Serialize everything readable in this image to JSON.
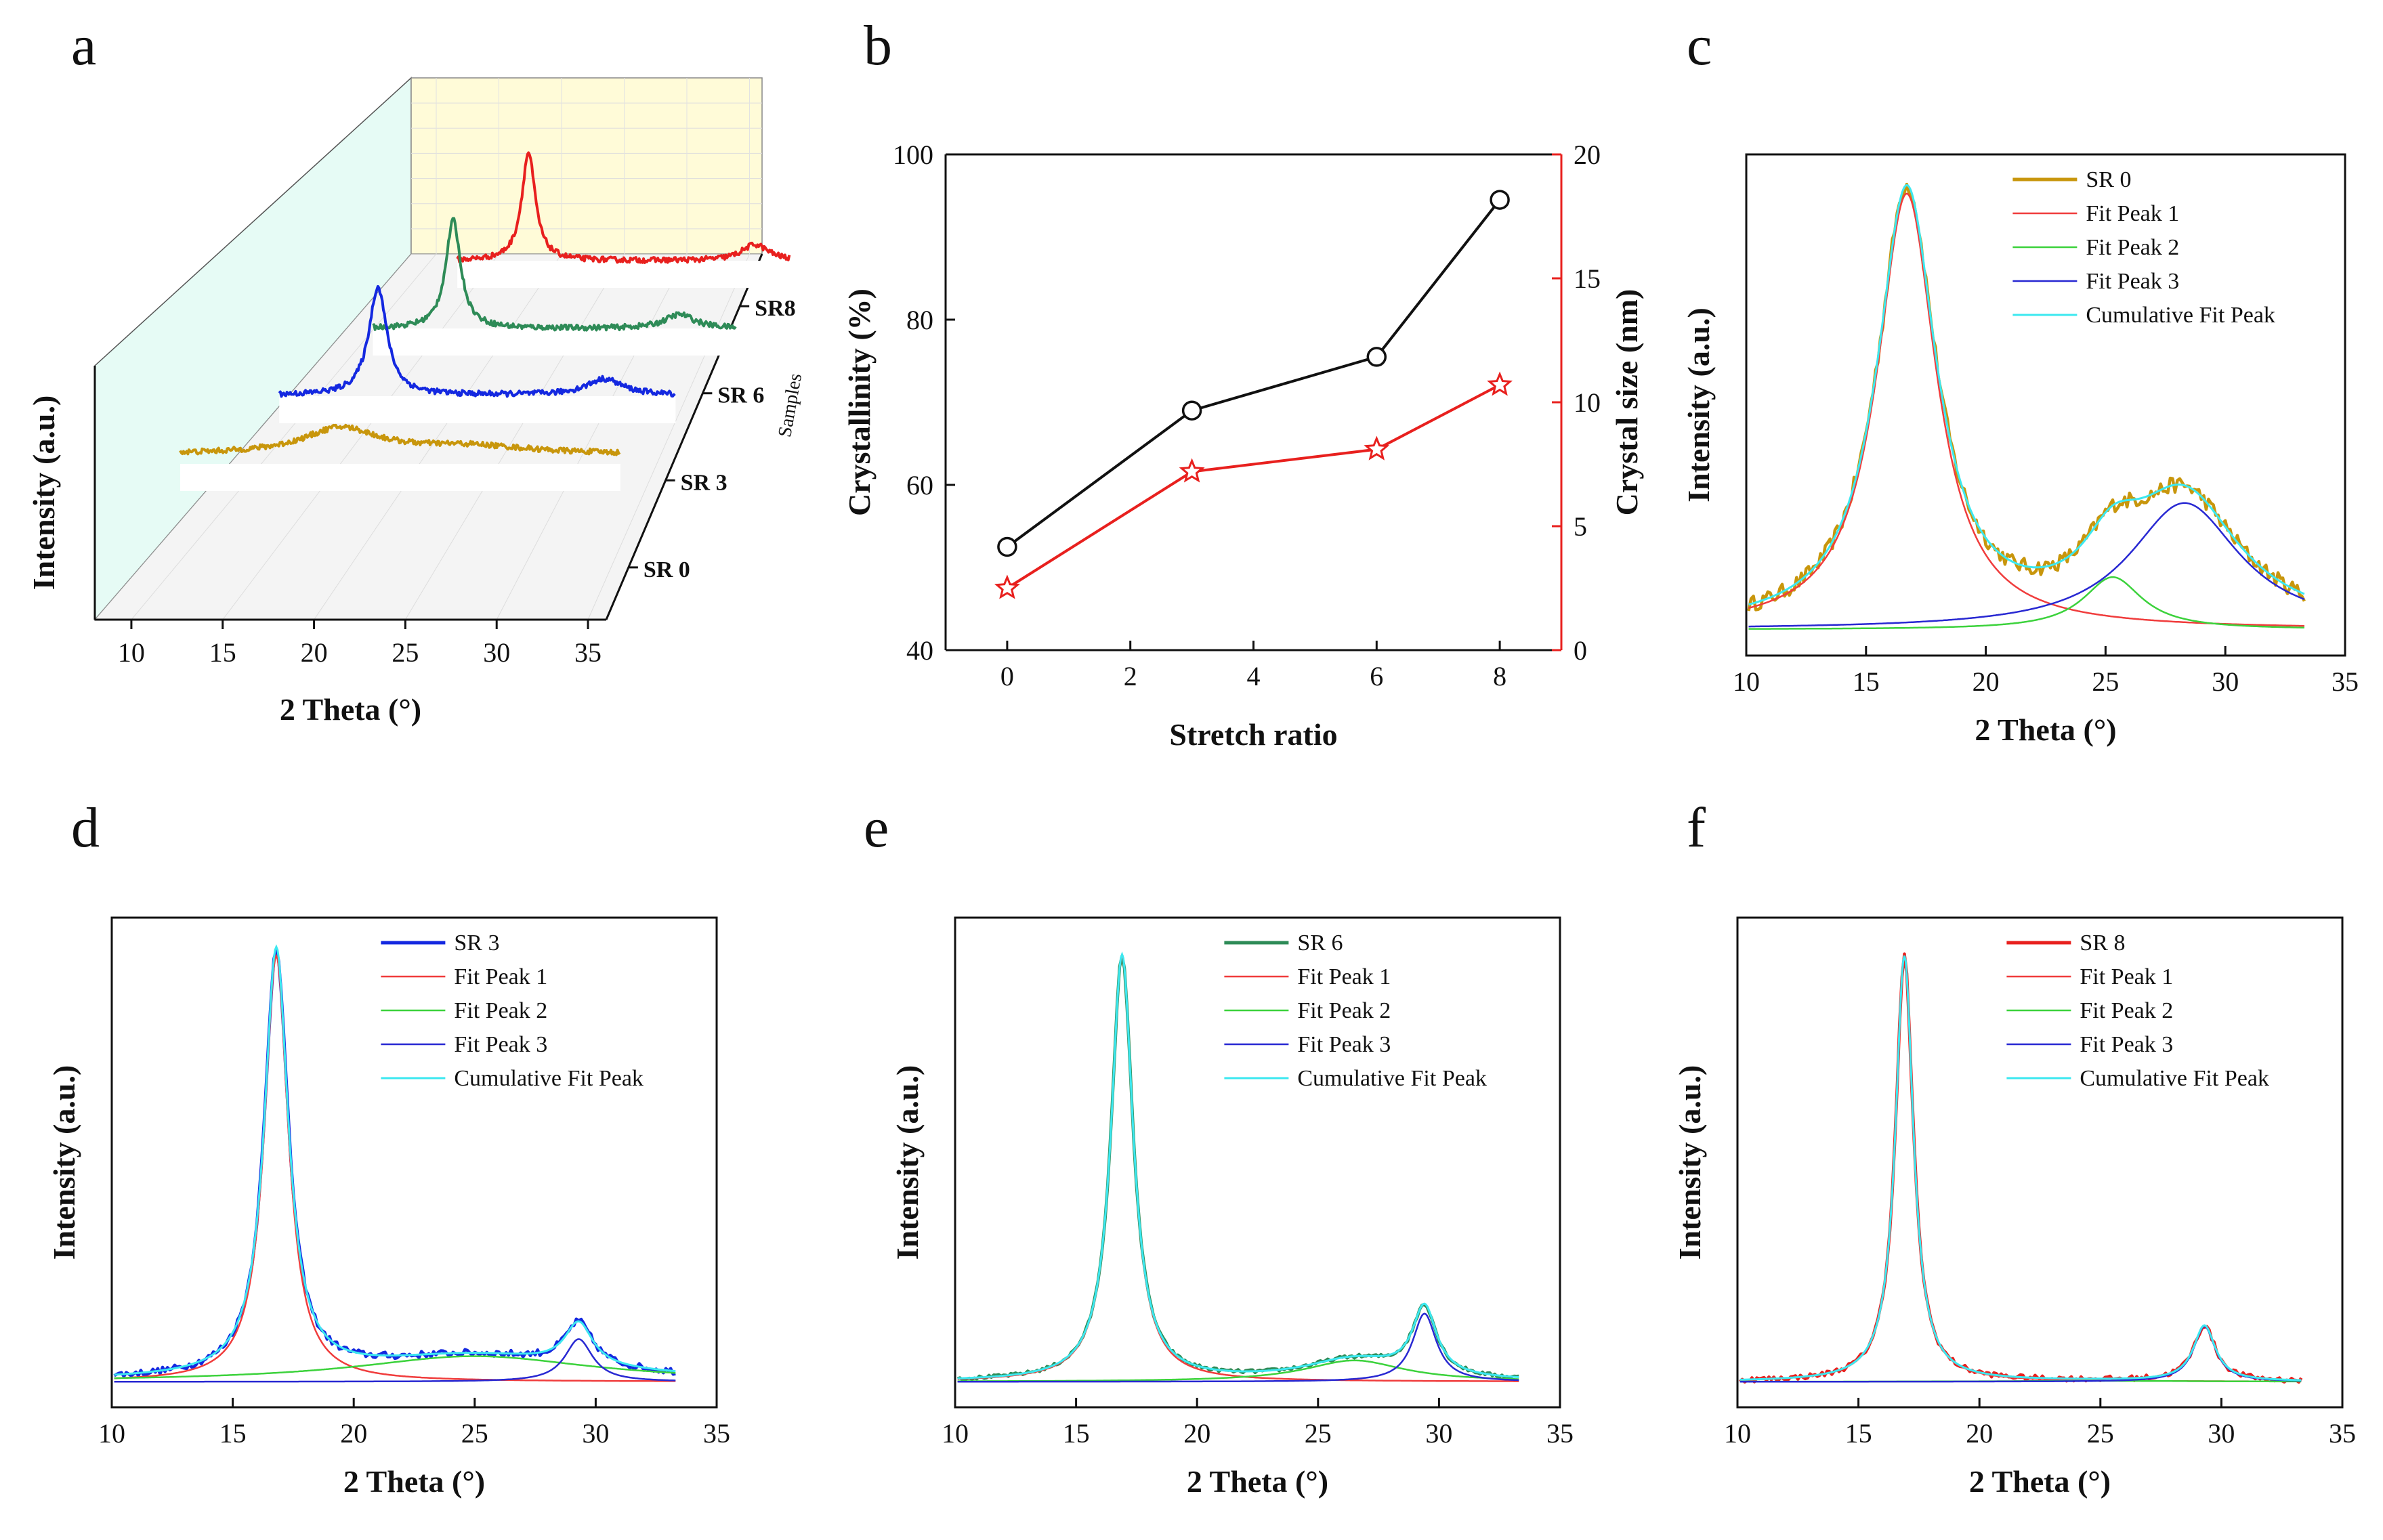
{
  "figure": {
    "panel_labels": [
      "a",
      "b",
      "c",
      "d",
      "e",
      "f"
    ]
  },
  "colors": {
    "SR0": "#C8960C",
    "SR3": "#1428E0",
    "SR6": "#2E8B57",
    "SR8": "#E8201E",
    "fit1": "#F03C3C",
    "fit2": "#3CD23C",
    "fit3": "#2828D2",
    "cumulative": "#3CE8F0",
    "back_wall": "#FFFBD8",
    "side_wall": "#E6FBF5"
  },
  "chart_data": [
    {
      "id": "a",
      "type": "line",
      "title": "",
      "xlabel": "2 Theta (°)",
      "ylabel": "Intensity (a.u.)",
      "depth_label": "Samples",
      "xlim": [
        8,
        36
      ],
      "xticks": [
        10,
        15,
        20,
        25,
        30,
        35
      ],
      "samples": [
        "SR 0",
        "SR 3",
        "SR 6",
        "SR8"
      ],
      "series": [
        {
          "name": "SR 0",
          "peaks": [
            [
              19.0,
              0.1,
              2.5
            ],
            [
              26.0,
              0.03,
              4.0
            ]
          ],
          "baseline": 0.05
        },
        {
          "name": "SR 3",
          "peaks": [
            [
              16.9,
              1.0,
              0.6
            ],
            [
              29.3,
              0.15,
              1.2
            ]
          ],
          "baseline": 0.04
        },
        {
          "name": "SR 6",
          "peaks": [
            [
              16.9,
              1.0,
              0.5
            ],
            [
              29.3,
              0.13,
              1.0
            ]
          ],
          "baseline": 0.03
        },
        {
          "name": "SR8",
          "peaks": [
            [
              16.9,
              1.0,
              0.45
            ],
            [
              29.3,
              0.15,
              0.9
            ]
          ],
          "baseline": 0.03
        }
      ]
    },
    {
      "id": "b",
      "type": "line",
      "xlabel": "Stretch ratio",
      "ylabel": "Crystallinity (%)",
      "ylabel_right": "Crystal size (nm)",
      "xlim": [
        -1,
        9
      ],
      "xticks": [
        0,
        2,
        4,
        6,
        8
      ],
      "ylim": [
        40,
        100
      ],
      "yticks": [
        40,
        60,
        80,
        100
      ],
      "ylim_right": [
        0,
        20
      ],
      "yticks_right": [
        0,
        5,
        10,
        15,
        20
      ],
      "x": [
        0,
        3,
        6,
        8
      ],
      "series": [
        {
          "name": "Crystallinity",
          "axis": "left",
          "values": [
            52.5,
            69.0,
            75.5,
            94.5
          ]
        },
        {
          "name": "Crystal size",
          "axis": "right",
          "values": [
            2.5,
            7.2,
            8.1,
            10.7
          ]
        }
      ]
    },
    {
      "id": "c",
      "type": "line",
      "xlabel": "2 Theta (°)",
      "ylabel": "Intensity (a.u.)",
      "xlim": [
        10,
        35
      ],
      "xticks": [
        10,
        15,
        20,
        25,
        30,
        35
      ],
      "legend": [
        "SR 0",
        "Fit Peak 1",
        "Fit Peak 2",
        "Fit Peak 3",
        "Cumulative Fit Peak"
      ],
      "baseline": 0.0,
      "fit_peaks": [
        [
          16.7,
          1.0,
          1.5
        ],
        [
          25.3,
          0.12,
          1.5
        ],
        [
          28.3,
          0.29,
          2.8
        ]
      ]
    },
    {
      "id": "d",
      "type": "line",
      "xlabel": "2 Theta (°)",
      "ylabel": "Intensity (a.u.)",
      "xlim": [
        10,
        35
      ],
      "xticks": [
        10,
        15,
        20,
        25,
        30,
        35
      ],
      "legend": [
        "SR 3",
        "Fit Peak 1",
        "Fit Peak 2",
        "Fit Peak 3",
        "Cumulative Fit Peak"
      ],
      "baseline": 0.0,
      "fit_peaks": [
        [
          16.8,
          1.0,
          0.6
        ],
        [
          25.0,
          0.06,
          6.0
        ],
        [
          29.3,
          0.1,
          0.7
        ]
      ]
    },
    {
      "id": "e",
      "type": "line",
      "xlabel": "2 Theta (°)",
      "ylabel": "Intensity (a.u.)",
      "xlim": [
        10,
        35
      ],
      "xticks": [
        10,
        15,
        20,
        25,
        30,
        35
      ],
      "legend": [
        "SR 6",
        "Fit Peak 1",
        "Fit Peak 2",
        "Fit Peak 3",
        "Cumulative Fit Peak"
      ],
      "baseline": 0.0,
      "fit_peaks": [
        [
          16.9,
          1.0,
          0.55
        ],
        [
          26.5,
          0.05,
          2.5
        ],
        [
          29.4,
          0.16,
          0.6
        ]
      ]
    },
    {
      "id": "f",
      "type": "line",
      "xlabel": "2 Theta (°)",
      "ylabel": "Intensity (a.u.)",
      "xlim": [
        10,
        35
      ],
      "xticks": [
        10,
        15,
        20,
        25,
        30,
        35
      ],
      "legend": [
        "SR 8",
        "Fit Peak 1",
        "Fit Peak 2",
        "Fit Peak 3",
        "Cumulative Fit Peak"
      ],
      "baseline": 0.0,
      "fit_peaks": [
        [
          16.9,
          1.0,
          0.45
        ],
        [
          25.0,
          0.002,
          5.0
        ],
        [
          29.3,
          0.13,
          0.55
        ]
      ]
    }
  ]
}
